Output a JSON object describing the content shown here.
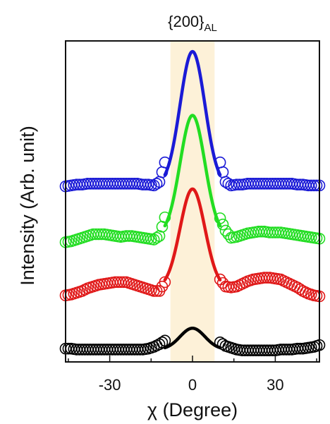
{
  "chart_data": {
    "type": "scatter",
    "title": "{200}",
    "title_subscript": "AL",
    "xlabel": "χ (Degree)",
    "ylabel": "Intensity (Arb. unit)",
    "xlim": [
      -46,
      46
    ],
    "xticks": [
      -30,
      0,
      30
    ],
    "xtick_labels": [
      "-30",
      "0",
      "30"
    ],
    "y_ticks_shown": false,
    "highlight_band": {
      "x_range": [
        -8,
        8
      ],
      "color": "#fdf1d8"
    },
    "grid": false,
    "legend": "none",
    "x": [
      -46,
      -44,
      -42,
      -40,
      -38,
      -36,
      -34,
      -32,
      -30,
      -28,
      -26,
      -24,
      -22,
      -20,
      -18,
      -16,
      -14,
      -12,
      -10,
      10,
      12,
      14,
      16,
      18,
      20,
      22,
      24,
      26,
      28,
      30,
      32,
      34,
      36,
      38,
      40,
      42,
      44,
      46
    ],
    "series": [
      {
        "color": "#1a1ad6",
        "points": [
          1.98,
          1.99,
          2.0,
          2.0,
          2.01,
          2.01,
          2.01,
          2.01,
          2.01,
          2.01,
          2.01,
          2.01,
          2.01,
          2.01,
          2.0,
          2.0,
          1.99,
          2.03,
          2.25,
          2.25,
          2.03,
          1.99,
          2.0,
          2.0,
          2.01,
          2.01,
          2.01,
          2.01,
          2.01,
          2.01,
          2.01,
          2.01,
          2.01,
          2.0,
          2.0,
          1.99,
          1.99,
          1.99
        ],
        "fit": {
          "baseline": 1.98,
          "peak": 3.5,
          "center": 0.0,
          "sigma": 4.5
        }
      },
      {
        "color": "#22dd22",
        "points": [
          1.35,
          1.36,
          1.38,
          1.4,
          1.42,
          1.44,
          1.44,
          1.44,
          1.43,
          1.42,
          1.41,
          1.42,
          1.42,
          1.41,
          1.4,
          1.39,
          1.38,
          1.42,
          1.63,
          1.62,
          1.48,
          1.4,
          1.41,
          1.43,
          1.45,
          1.46,
          1.47,
          1.47,
          1.46,
          1.46,
          1.46,
          1.45,
          1.44,
          1.43,
          1.42,
          1.41,
          1.4,
          1.39
        ],
        "fit": {
          "baseline": 1.42,
          "peak": 2.78,
          "center": 0.0,
          "sigma": 4.5
        }
      },
      {
        "color": "#e01818",
        "points": [
          0.75,
          0.76,
          0.78,
          0.8,
          0.83,
          0.85,
          0.87,
          0.88,
          0.89,
          0.9,
          0.9,
          0.9,
          0.88,
          0.86,
          0.84,
          0.82,
          0.8,
          0.8,
          0.9,
          0.93,
          0.85,
          0.84,
          0.85,
          0.88,
          0.91,
          0.93,
          0.94,
          0.95,
          0.95,
          0.94,
          0.93,
          0.9,
          0.87,
          0.84,
          0.8,
          0.77,
          0.75,
          0.74
        ],
        "fit": {
          "baseline": 0.83,
          "peak": 1.95,
          "center": 0.0,
          "sigma": 4.5
        }
      },
      {
        "color": "#000000",
        "points": [
          0.15,
          0.15,
          0.14,
          0.14,
          0.14,
          0.14,
          0.14,
          0.14,
          0.14,
          0.14,
          0.14,
          0.14,
          0.14,
          0.14,
          0.14,
          0.15,
          0.17,
          0.2,
          0.24,
          0.22,
          0.18,
          0.16,
          0.14,
          0.13,
          0.13,
          0.13,
          0.13,
          0.13,
          0.13,
          0.13,
          0.14,
          0.14,
          0.14,
          0.15,
          0.15,
          0.16,
          0.17,
          0.19
        ],
        "fit": {
          "baseline": 0.14,
          "peak": 0.38,
          "center": 0.0,
          "sigma": 4.5
        }
      }
    ]
  }
}
